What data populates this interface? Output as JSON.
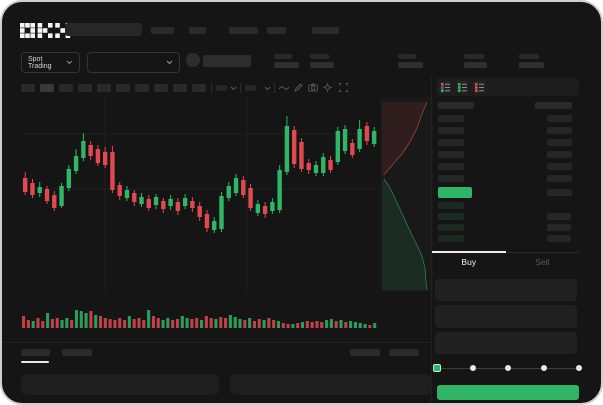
{
  "header": {
    "logo_text": "OKX",
    "spot_trading_label": "Spot Trading"
  },
  "trade_panel": {
    "buy_label": "Buy",
    "sell_label": "Sell",
    "slider": {
      "stops": [
        0,
        25,
        50,
        75,
        100
      ],
      "active_stop": 0
    }
  },
  "colors": {
    "up": "#2eb566",
    "down": "#de4a4f",
    "accent": "#2eb566",
    "window_bg": "#151515",
    "grid": "#1e1e1e"
  },
  "order_book": {
    "view_modes": [
      "all",
      "bids",
      "asks"
    ],
    "header_bars": {
      "left_w": 36,
      "right_w": 37
    },
    "ask_rows": [
      {
        "l": 26,
        "r": 25
      },
      {
        "l": 26,
        "r": 25
      },
      {
        "l": 26,
        "r": 25
      },
      {
        "l": 26,
        "r": 25
      },
      {
        "l": 26,
        "r": 25
      },
      {
        "l": 26,
        "r": 25
      }
    ],
    "last_price_bar": {
      "w": 34,
      "right_w": 25
    },
    "bid_rows": [
      {
        "l": 26,
        "r": 0
      },
      {
        "l": 26,
        "r": 24
      },
      {
        "l": 26,
        "r": 24
      },
      {
        "l": 26,
        "r": 24
      }
    ]
  },
  "chart_data": {
    "type": "candlestick",
    "title": "",
    "xlabel": "",
    "ylabel": "",
    "ylim": [
      0,
      195
    ],
    "grid": {
      "h_lines": [
        37,
        92
      ],
      "v_lines": [
        84,
        226
      ]
    },
    "candles": [
      [
        114,
        120,
        97,
        100
      ],
      [
        109,
        113,
        94,
        97
      ],
      [
        99,
        110,
        95,
        105
      ],
      [
        103,
        106,
        88,
        91
      ],
      [
        97,
        101,
        81,
        84
      ],
      [
        86,
        109,
        84,
        106
      ],
      [
        104,
        127,
        101,
        123
      ],
      [
        121,
        143,
        118,
        136
      ],
      [
        134,
        159,
        131,
        151
      ],
      [
        147,
        151,
        132,
        136
      ],
      [
        143,
        147,
        126,
        129
      ],
      [
        140,
        145,
        124,
        127
      ],
      [
        140,
        146,
        99,
        102
      ],
      [
        107,
        110,
        92,
        96
      ],
      [
        94,
        106,
        91,
        102
      ],
      [
        99,
        102,
        86,
        90
      ],
      [
        88,
        99,
        85,
        95
      ],
      [
        93,
        97,
        81,
        84
      ],
      [
        87,
        98,
        83,
        95
      ],
      [
        91,
        94,
        79,
        83
      ],
      [
        86,
        97,
        82,
        93
      ],
      [
        90,
        94,
        77,
        81
      ],
      [
        86,
        98,
        83,
        94
      ],
      [
        91,
        95,
        80,
        84
      ],
      [
        86,
        90,
        71,
        75
      ],
      [
        78,
        82,
        60,
        64
      ],
      [
        62,
        75,
        59,
        71
      ],
      [
        63,
        100,
        60,
        96
      ],
      [
        94,
        110,
        91,
        106
      ],
      [
        99,
        118,
        96,
        114
      ],
      [
        112,
        116,
        94,
        97
      ],
      [
        104,
        108,
        81,
        84
      ],
      [
        79,
        92,
        76,
        88
      ],
      [
        86,
        90,
        74,
        78
      ],
      [
        81,
        94,
        78,
        90
      ],
      [
        82,
        127,
        79,
        122
      ],
      [
        120,
        176,
        117,
        166
      ],
      [
        162,
        166,
        124,
        128
      ],
      [
        150,
        154,
        120,
        123
      ],
      [
        129,
        133,
        118,
        122
      ],
      [
        119,
        131,
        116,
        127
      ],
      [
        119,
        139,
        116,
        135
      ],
      [
        132,
        136,
        119,
        122
      ],
      [
        130,
        165,
        127,
        161
      ],
      [
        141,
        167,
        138,
        163
      ],
      [
        149,
        153,
        134,
        137
      ],
      [
        143,
        172,
        140,
        163
      ],
      [
        166,
        170,
        147,
        151
      ],
      [
        148,
        165,
        145,
        161
      ]
    ],
    "volume": [
      [
        12,
        "r"
      ],
      [
        8,
        "r"
      ],
      [
        7,
        "g"
      ],
      [
        10,
        "r"
      ],
      [
        7,
        "r"
      ],
      [
        15,
        "g"
      ],
      [
        9,
        "r"
      ],
      [
        10,
        "r"
      ],
      [
        8,
        "g"
      ],
      [
        10,
        "g"
      ],
      [
        8,
        "r"
      ],
      [
        18,
        "g"
      ],
      [
        17,
        "g"
      ],
      [
        15,
        "g"
      ],
      [
        17,
        "r"
      ],
      [
        13,
        "g"
      ],
      [
        12,
        "r"
      ],
      [
        10,
        "r"
      ],
      [
        9,
        "r"
      ],
      [
        8,
        "r"
      ],
      [
        10,
        "r"
      ],
      [
        8,
        "r"
      ],
      [
        12,
        "g"
      ],
      [
        9,
        "r"
      ],
      [
        10,
        "r"
      ],
      [
        8,
        "r"
      ],
      [
        18,
        "g"
      ],
      [
        12,
        "r"
      ],
      [
        10,
        "r"
      ],
      [
        8,
        "g"
      ],
      [
        10,
        "g"
      ],
      [
        8,
        "r"
      ],
      [
        9,
        "r"
      ],
      [
        12,
        "g"
      ],
      [
        10,
        "g"
      ],
      [
        9,
        "r"
      ],
      [
        10,
        "r"
      ],
      [
        8,
        "g"
      ],
      [
        12,
        "r"
      ],
      [
        10,
        "r"
      ],
      [
        9,
        "g"
      ],
      [
        11,
        "r"
      ],
      [
        10,
        "r"
      ],
      [
        13,
        "g"
      ],
      [
        11,
        "g"
      ],
      [
        9,
        "g"
      ],
      [
        8,
        "r"
      ],
      [
        10,
        "g"
      ],
      [
        7,
        "r"
      ],
      [
        9,
        "r"
      ],
      [
        8,
        "g"
      ],
      [
        10,
        "r"
      ],
      [
        8,
        "r"
      ],
      [
        7,
        "g"
      ],
      [
        5,
        "r"
      ],
      [
        4,
        "r"
      ],
      [
        4,
        "g"
      ],
      [
        5,
        "r"
      ],
      [
        6,
        "g"
      ],
      [
        7,
        "r"
      ],
      [
        6,
        "r"
      ],
      [
        7,
        "r"
      ],
      [
        6,
        "r"
      ],
      [
        8,
        "g"
      ],
      [
        9,
        "g"
      ],
      [
        7,
        "r"
      ],
      [
        8,
        "g"
      ],
      [
        6,
        "r"
      ],
      [
        7,
        "g"
      ],
      [
        6,
        "g"
      ],
      [
        5,
        "g"
      ],
      [
        4,
        "g"
      ],
      [
        3,
        "r"
      ],
      [
        5,
        "g"
      ]
    ],
    "depth": {
      "asks": [
        [
          48,
          5
        ],
        [
          43,
          17
        ],
        [
          38,
          31
        ],
        [
          31,
          45
        ],
        [
          23,
          57
        ],
        [
          15,
          66
        ],
        [
          9,
          73
        ],
        [
          5,
          78
        ]
      ],
      "bids": [
        [
          5,
          82
        ],
        [
          10,
          89
        ],
        [
          15,
          99
        ],
        [
          20,
          110
        ],
        [
          26,
          123
        ],
        [
          32,
          136
        ],
        [
          38,
          148
        ],
        [
          43,
          159
        ],
        [
          46,
          171
        ],
        [
          47,
          185
        ],
        [
          48,
          193
        ]
      ]
    }
  }
}
